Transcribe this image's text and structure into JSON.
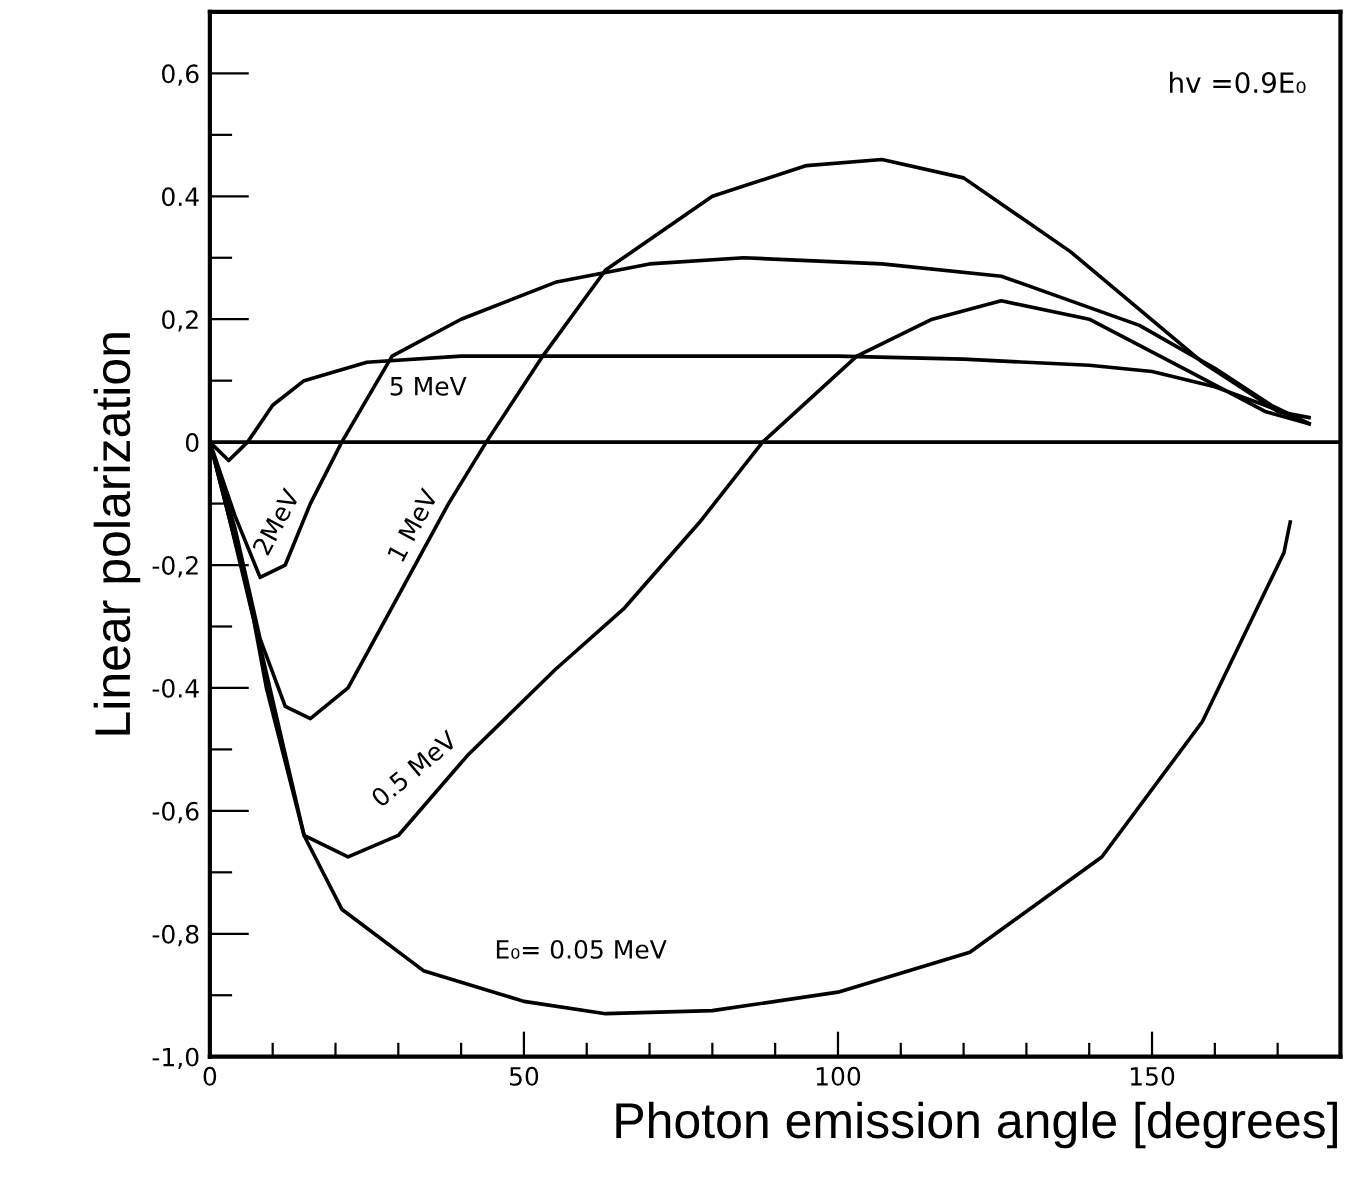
{
  "chart_data": {
    "type": "line",
    "xlabel": "Photon emission angle [degrees]",
    "ylabel": "Linear polarization",
    "annotations": [
      "hv =0.9E₀"
    ],
    "xlim": [
      0,
      180
    ],
    "ylim": [
      -1.0,
      0.7
    ],
    "xticks": [
      0,
      {
        "value": 10,
        "label": null
      },
      {
        "value": 20,
        "label": null
      },
      {
        "value": 30,
        "label": null
      },
      {
        "value": 40,
        "label": null
      },
      50,
      {
        "value": 60,
        "label": null
      },
      {
        "value": 70,
        "label": null
      },
      {
        "value": 80,
        "label": null
      },
      {
        "value": 90,
        "label": null
      },
      100,
      {
        "value": 110,
        "label": null
      },
      {
        "value": 120,
        "label": null
      },
      {
        "value": 130,
        "label": null
      },
      {
        "value": 140,
        "label": null
      },
      150,
      {
        "value": 160,
        "label": null
      },
      {
        "value": 170,
        "label": null
      }
    ],
    "yticks": [
      {
        "value": -1.0,
        "label": "-1,0"
      },
      {
        "value": -0.9,
        "label": null
      },
      {
        "value": -0.8,
        "label": "-0,8"
      },
      {
        "value": -0.7,
        "label": null
      },
      {
        "value": -0.6,
        "label": "-0,6"
      },
      {
        "value": -0.5,
        "label": null
      },
      {
        "value": -0.4,
        "label": "-0.4"
      },
      {
        "value": -0.3,
        "label": null
      },
      {
        "value": -0.2,
        "label": "-0,2"
      },
      {
        "value": -0.1,
        "label": null
      },
      0,
      {
        "value": 0.1,
        "label": null
      },
      {
        "value": 0.2,
        "label": "0,2"
      },
      {
        "value": 0.3,
        "label": null
      },
      {
        "value": 0.4,
        "label": "0.4"
      },
      {
        "value": 0.5,
        "label": null
      },
      {
        "value": 0.6,
        "label": "0,6"
      }
    ],
    "ref_lines": [
      {
        "axis": "y",
        "value": 0,
        "color": "#000000"
      }
    ],
    "grid": false,
    "legend": false,
    "marker": "none",
    "line_style": "solid",
    "series": [
      {
        "name": "5 MeV",
        "color": "#000000",
        "x": [
          0,
          3,
          6,
          10,
          15,
          25,
          40,
          60,
          80,
          100,
          120,
          140,
          150,
          160,
          168,
          175
        ],
        "values": [
          0,
          -0.03,
          0,
          0.06,
          0.1,
          0.13,
          0.14,
          0.14,
          0.14,
          0.14,
          0.135,
          0.125,
          0.115,
          0.09,
          0.06,
          0.03
        ]
      },
      {
        "name": "2MeV",
        "color": "#000000",
        "x": [
          0,
          4,
          8,
          12,
          16,
          21,
          29,
          40,
          55,
          70,
          85,
          107,
          126,
          148,
          160,
          169,
          175
        ],
        "values": [
          0,
          -0.12,
          -0.22,
          -0.2,
          -0.1,
          0,
          0.14,
          0.2,
          0.26,
          0.29,
          0.3,
          0.29,
          0.27,
          0.19,
          0.12,
          0.06,
          0.03
        ]
      },
      {
        "name": "1 MeV",
        "color": "#000000",
        "x": [
          0,
          4,
          8,
          12,
          16,
          22,
          30,
          38,
          44,
          53,
          63,
          80,
          95,
          107,
          120,
          137,
          158,
          170,
          175
        ],
        "values": [
          0,
          -0.14,
          -0.32,
          -0.43,
          -0.45,
          -0.4,
          -0.25,
          -0.1,
          0,
          0.14,
          0.28,
          0.4,
          0.45,
          0.46,
          0.43,
          0.31,
          0.13,
          0.05,
          0.04
        ]
      },
      {
        "name": "0.5 MeV",
        "color": "#000000",
        "x": [
          0,
          5,
          10,
          15,
          22,
          30,
          41,
          55,
          66,
          78,
          88,
          103,
          115,
          126,
          140,
          155,
          168,
          175
        ],
        "values": [
          0,
          -0.2,
          -0.42,
          -0.64,
          -0.675,
          -0.64,
          -0.51,
          -0.37,
          -0.27,
          -0.13,
          0,
          0.14,
          0.2,
          0.23,
          0.2,
          0.12,
          0.05,
          0.03
        ]
      },
      {
        "name": "E₀= 0.05 MeV",
        "color": "#000000",
        "x": [
          0,
          3,
          7,
          9,
          15,
          21,
          34,
          50,
          63,
          80,
          100,
          121,
          142,
          158,
          171,
          172
        ],
        "values": [
          0,
          -0.12,
          -0.29,
          -0.4,
          -0.64,
          -0.76,
          -0.86,
          -0.91,
          -0.93,
          -0.925,
          -0.895,
          -0.83,
          -0.675,
          -0.455,
          -0.18,
          -0.13
        ]
      }
    ]
  }
}
